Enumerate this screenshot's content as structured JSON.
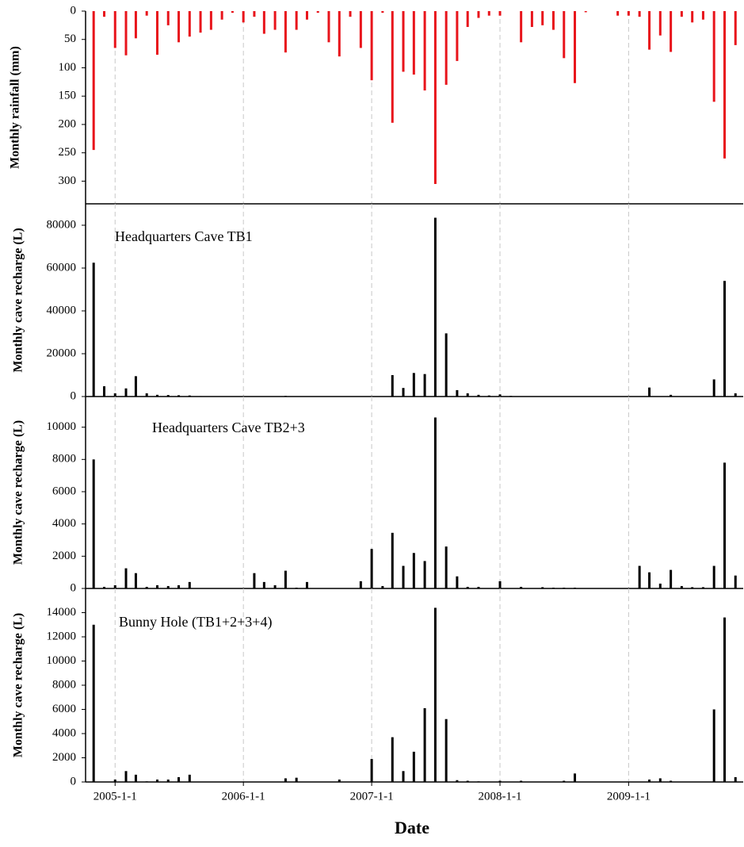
{
  "chart_data": [
    {
      "type": "bar",
      "y_label": "Monthly rainfall (mm)",
      "color": "#e8141b",
      "xgrid": true,
      "xlim": [
        "2004-10-9",
        "2009-11-23"
      ],
      "ylim": [
        340,
        0
      ],
      "yticks": [
        0,
        50,
        100,
        150,
        200,
        250,
        300
      ],
      "x": [
        "2004-11-1",
        "2004-12-1",
        "2005-1-1",
        "2005-2-1",
        "2005-3-1",
        "2005-4-1",
        "2005-5-1",
        "2005-6-1",
        "2005-7-1",
        "2005-8-1",
        "2005-9-1",
        "2005-10-1",
        "2005-11-1",
        "2005-12-1",
        "2006-1-1",
        "2006-2-1",
        "2006-3-1",
        "2006-4-1",
        "2006-5-1",
        "2006-6-1",
        "2006-7-1",
        "2006-8-1",
        "2006-9-1",
        "2006-10-1",
        "2006-11-1",
        "2006-12-1",
        "2007-1-1",
        "2007-2-1",
        "2007-3-1",
        "2007-4-1",
        "2007-5-1",
        "2007-6-1",
        "2007-7-1",
        "2007-8-1",
        "2007-9-1",
        "2007-10-1",
        "2007-11-1",
        "2007-12-1",
        "2008-1-1",
        "2008-2-1",
        "2008-3-1",
        "2008-4-1",
        "2008-5-1",
        "2008-6-1",
        "2008-7-1",
        "2008-8-1",
        "2008-9-1",
        "2008-10-1",
        "2008-11-1",
        "2008-12-1",
        "2009-1-1",
        "2009-2-1",
        "2009-3-1",
        "2009-4-1",
        "2009-5-1",
        "2009-6-1",
        "2009-7-1",
        "2009-8-1",
        "2009-9-1",
        "2009-10-1",
        "2009-11-1"
      ],
      "values": [
        245,
        10,
        65,
        78,
        48,
        8,
        77,
        25,
        55,
        45,
        38,
        33,
        15,
        3,
        20,
        10,
        40,
        33,
        73,
        33,
        15,
        3,
        55,
        80,
        10,
        65,
        122,
        3,
        197,
        107,
        112,
        140,
        305,
        130,
        88,
        28,
        12,
        8,
        8,
        0,
        55,
        28,
        25,
        33,
        83,
        127,
        2,
        0,
        0,
        8,
        8,
        10,
        68,
        43,
        72,
        10,
        20,
        15,
        160,
        260,
        60
      ]
    },
    {
      "type": "bar",
      "y_label": "Monthly cave recharge (L)",
      "annotation": "Headquarters Cave TB1",
      "color": "#000000",
      "xgrid": true,
      "xlim": [
        "2004-10-9",
        "2009-11-23"
      ],
      "ylim": [
        0,
        90000
      ],
      "yticks": [
        0,
        20000,
        40000,
        60000,
        80000
      ],
      "x": [
        "2004-11-1",
        "2004-12-1",
        "2005-1-1",
        "2005-2-1",
        "2005-3-1",
        "2005-4-1",
        "2005-5-1",
        "2005-6-1",
        "2005-7-1",
        "2005-8-1",
        "2005-9-1",
        "2005-10-1",
        "2005-11-1",
        "2005-12-1",
        "2006-1-1",
        "2006-2-1",
        "2006-3-1",
        "2006-4-1",
        "2006-5-1",
        "2006-6-1",
        "2006-7-1",
        "2006-8-1",
        "2006-9-1",
        "2006-10-1",
        "2006-11-1",
        "2006-12-1",
        "2007-1-1",
        "2007-2-1",
        "2007-3-1",
        "2007-4-1",
        "2007-5-1",
        "2007-6-1",
        "2007-7-1",
        "2007-8-1",
        "2007-9-1",
        "2007-10-1",
        "2007-11-1",
        "2007-12-1",
        "2008-1-1",
        "2008-2-1",
        "2008-3-1",
        "2008-4-1",
        "2008-5-1",
        "2008-6-1",
        "2008-7-1",
        "2008-8-1",
        "2008-9-1",
        "2008-10-1",
        "2008-11-1",
        "2008-12-1",
        "2009-1-1",
        "2009-2-1",
        "2009-3-1",
        "2009-4-1",
        "2009-5-1",
        "2009-6-1",
        "2009-7-1",
        "2009-8-1",
        "2009-9-1",
        "2009-10-1",
        "2009-11-1"
      ],
      "values": [
        62500,
        4800,
        1500,
        3800,
        9500,
        1500,
        800,
        700,
        600,
        500,
        200,
        0,
        0,
        0,
        0,
        0,
        0,
        0,
        300,
        0,
        0,
        0,
        0,
        0,
        0,
        0,
        0,
        0,
        10000,
        4000,
        11000,
        10500,
        83500,
        29500,
        3000,
        1500,
        800,
        500,
        1000,
        300,
        0,
        0,
        0,
        0,
        0,
        0,
        0,
        0,
        0,
        0,
        0,
        0,
        4200,
        0,
        800,
        0,
        0,
        0,
        8000,
        54000,
        1500
      ]
    },
    {
      "type": "bar",
      "y_label": "Monthly cave recharge (L)",
      "annotation": "Headquarters Cave TB2+3",
      "color": "#000000",
      "xgrid": true,
      "xlim": [
        "2004-10-9",
        "2009-11-23"
      ],
      "ylim": [
        0,
        11900
      ],
      "yticks": [
        0,
        2000,
        4000,
        6000,
        8000,
        10000
      ],
      "x": [
        "2004-11-1",
        "2004-12-1",
        "2005-1-1",
        "2005-2-1",
        "2005-3-1",
        "2005-4-1",
        "2005-5-1",
        "2005-6-1",
        "2005-7-1",
        "2005-8-1",
        "2005-9-1",
        "2005-10-1",
        "2005-11-1",
        "2005-12-1",
        "2006-1-1",
        "2006-2-1",
        "2006-3-1",
        "2006-4-1",
        "2006-5-1",
        "2006-6-1",
        "2006-7-1",
        "2006-8-1",
        "2006-9-1",
        "2006-10-1",
        "2006-11-1",
        "2006-12-1",
        "2007-1-1",
        "2007-2-1",
        "2007-3-1",
        "2007-4-1",
        "2007-5-1",
        "2007-6-1",
        "2007-7-1",
        "2007-8-1",
        "2007-9-1",
        "2007-10-1",
        "2007-11-1",
        "2007-12-1",
        "2008-1-1",
        "2008-2-1",
        "2008-3-1",
        "2008-4-1",
        "2008-5-1",
        "2008-6-1",
        "2008-7-1",
        "2008-8-1",
        "2008-9-1",
        "2008-10-1",
        "2008-11-1",
        "2008-12-1",
        "2009-1-1",
        "2009-2-1",
        "2009-3-1",
        "2009-4-1",
        "2009-5-1",
        "2009-6-1",
        "2009-7-1",
        "2009-8-1",
        "2009-9-1",
        "2009-10-1",
        "2009-11-1"
      ],
      "values": [
        8000,
        100,
        200,
        1250,
        950,
        100,
        200,
        150,
        200,
        400,
        0,
        0,
        0,
        0,
        0,
        950,
        400,
        200,
        1100,
        50,
        400,
        0,
        0,
        0,
        0,
        450,
        2450,
        150,
        3450,
        1400,
        2200,
        1700,
        10600,
        2600,
        750,
        100,
        100,
        0,
        450,
        0,
        100,
        0,
        80,
        50,
        50,
        50,
        0,
        0,
        0,
        0,
        0,
        1400,
        1000,
        300,
        1150,
        150,
        80,
        80,
        1400,
        7800,
        800
      ]
    },
    {
      "type": "bar",
      "y_label": "Monthly cave recharge (L)",
      "annotation": "Bunny Hole (TB1+2+3+4)",
      "color": "#000000",
      "xgrid": true,
      "xlim": [
        "2004-10-9",
        "2009-11-23"
      ],
      "ylim": [
        0,
        16000
      ],
      "yticks": [
        0,
        2000,
        4000,
        6000,
        8000,
        10000,
        12000,
        14000
      ],
      "x_label": "Date",
      "xticks": [
        "2005-1-1",
        "2006-1-1",
        "2007-1-1",
        "2008-1-1",
        "2009-1-1"
      ],
      "x": [
        "2004-11-1",
        "2004-12-1",
        "2005-1-1",
        "2005-2-1",
        "2005-3-1",
        "2005-4-1",
        "2005-5-1",
        "2005-6-1",
        "2005-7-1",
        "2005-8-1",
        "2005-9-1",
        "2005-10-1",
        "2005-11-1",
        "2005-12-1",
        "2006-1-1",
        "2006-2-1",
        "2006-3-1",
        "2006-4-1",
        "2006-5-1",
        "2006-6-1",
        "2006-7-1",
        "2006-8-1",
        "2006-9-1",
        "2006-10-1",
        "2006-11-1",
        "2006-12-1",
        "2007-1-1",
        "2007-2-1",
        "2007-3-1",
        "2007-4-1",
        "2007-5-1",
        "2007-6-1",
        "2007-7-1",
        "2007-8-1",
        "2007-9-1",
        "2007-10-1",
        "2007-11-1",
        "2007-12-1",
        "2008-1-1",
        "2008-2-1",
        "2008-3-1",
        "2008-4-1",
        "2008-5-1",
        "2008-6-1",
        "2008-7-1",
        "2008-8-1",
        "2008-9-1",
        "2008-10-1",
        "2008-11-1",
        "2008-12-1",
        "2009-1-1",
        "2009-2-1",
        "2009-3-1",
        "2009-4-1",
        "2009-5-1",
        "2009-6-1",
        "2009-7-1",
        "2009-8-1",
        "2009-9-1",
        "2009-10-1",
        "2009-11-1"
      ],
      "values": [
        13000,
        0,
        200,
        900,
        600,
        50,
        200,
        200,
        400,
        600,
        0,
        0,
        0,
        0,
        0,
        0,
        0,
        0,
        300,
        350,
        0,
        0,
        0,
        200,
        0,
        0,
        1900,
        0,
        3700,
        900,
        2500,
        6100,
        14400,
        5200,
        150,
        100,
        50,
        0,
        100,
        0,
        100,
        0,
        0,
        0,
        100,
        700,
        0,
        0,
        0,
        0,
        0,
        0,
        200,
        300,
        100,
        0,
        0,
        0,
        6000,
        13600,
        400
      ]
    }
  ]
}
